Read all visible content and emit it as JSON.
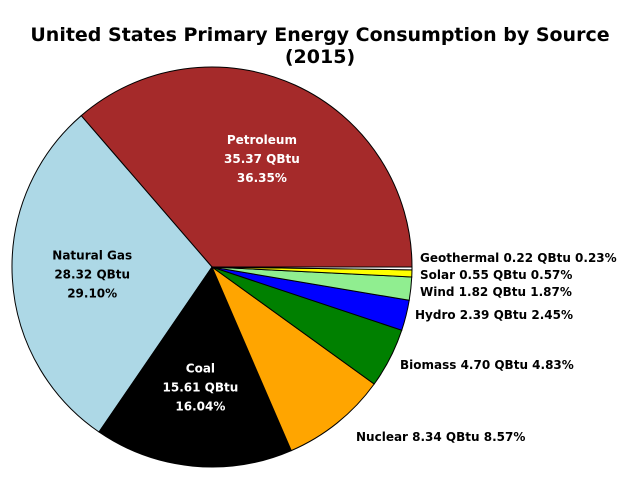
{
  "chart_data": {
    "type": "pie",
    "title": "United States Primary Energy Consumption by Source (2015)",
    "start_angle_deg": 0,
    "direction": "counterclockwise",
    "slices": [
      {
        "name": "Petroleum",
        "value": 35.37,
        "value_text": "35.37 QBtu",
        "percent_text": "36.35%",
        "color": "#A52A2A",
        "label_color": "#ffffff",
        "label_position": "inside"
      },
      {
        "name": "Natural Gas",
        "value": 28.32,
        "value_text": "28.32 QBtu",
        "percent_text": "29.10%",
        "color": "#ADD8E6",
        "label_color": "#000000",
        "label_position": "inside"
      },
      {
        "name": "Coal",
        "value": 15.61,
        "value_text": "15.61 QBtu",
        "percent_text": "16.04%",
        "color": "#000000",
        "label_color": "#ffffff",
        "label_position": "inside"
      },
      {
        "name": "Nuclear",
        "value": 8.34,
        "value_text": "8.34 QBtu",
        "percent_text": "8.57%",
        "color": "#FFA500",
        "label_color": "#000000",
        "label_position": "outside"
      },
      {
        "name": "Biomass",
        "value": 4.7,
        "value_text": "4.70 QBtu",
        "percent_text": "4.83%",
        "color": "#008000",
        "label_color": "#000000",
        "label_position": "outside"
      },
      {
        "name": "Hydro",
        "value": 2.39,
        "value_text": "2.39 QBtu",
        "percent_text": "2.45%",
        "color": "#0000FF",
        "label_color": "#000000",
        "label_position": "outside"
      },
      {
        "name": "Wind",
        "value": 1.82,
        "value_text": "1.82 QBtu",
        "percent_text": "1.87%",
        "color": "#90EE90",
        "label_color": "#000000",
        "label_position": "outside"
      },
      {
        "name": "Solar",
        "value": 0.55,
        "value_text": "0.55 QBtu",
        "percent_text": "0.57%",
        "color": "#FFFF00",
        "label_color": "#000000",
        "label_position": "outside"
      },
      {
        "name": "Geothermal",
        "value": 0.22,
        "value_text": "0.22 QBtu",
        "percent_text": "0.23%",
        "color": "#FFFFFF",
        "label_color": "#000000",
        "label_position": "outside"
      }
    ]
  }
}
